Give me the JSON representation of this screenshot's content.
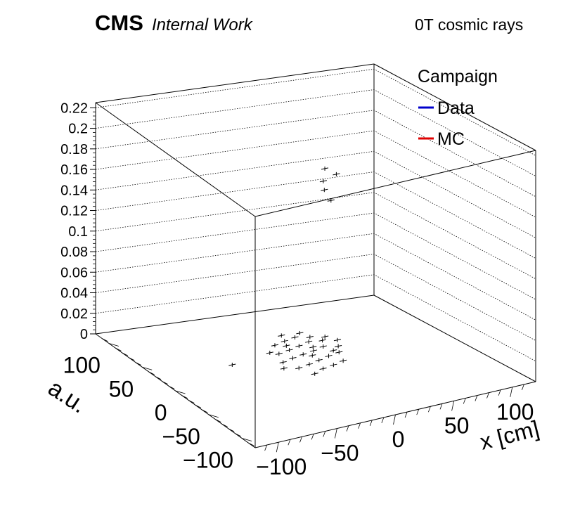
{
  "header": {
    "experiment": "CMS",
    "status": "Internal Work",
    "run_condition": "0T cosmic rays"
  },
  "legend": {
    "title": "Campaign",
    "entries": [
      {
        "label": "Data",
        "color": "#0000cc"
      },
      {
        "label": "MC",
        "color": "#e00000"
      }
    ]
  },
  "axes": {
    "z_label": "a.u.",
    "x_label": "x [cm]",
    "z_ticks": [
      "0",
      "0.02",
      "0.04",
      "0.06",
      "0.08",
      "0.1",
      "0.12",
      "0.14",
      "0.16",
      "0.18",
      "0.2",
      "0.22"
    ],
    "x_ticks": [
      "−100",
      "−50",
      "0",
      "50",
      "100"
    ],
    "y_ticks": [
      "100",
      "50",
      "0",
      "−50",
      "−100"
    ]
  },
  "chart_data": {
    "type": "scatter",
    "title": "",
    "xlabel": "x [cm]",
    "ylabel": "",
    "zlabel": "a.u.",
    "xlim": [
      -120,
      120
    ],
    "ylim": [
      -120,
      120
    ],
    "zlim": [
      0,
      0.225
    ],
    "grid": true,
    "legend_position": "top-right",
    "series": [
      {
        "name": "Data",
        "color": "#000000",
        "points": [
          {
            "x": 5,
            "y": -5,
            "z": 0.185
          },
          {
            "x": 12,
            "y": -10,
            "z": 0.18
          },
          {
            "x": 2,
            "y": -8,
            "z": 0.175
          },
          {
            "x": 4,
            "y": -6,
            "z": 0.165
          },
          {
            "x": 8,
            "y": -9,
            "z": 0.155
          },
          {
            "x": -15,
            "y": -25,
            "z": 0
          },
          {
            "x": -5,
            "y": -20,
            "z": 0
          },
          {
            "x": 5,
            "y": -18,
            "z": 0
          },
          {
            "x": 15,
            "y": -15,
            "z": 0
          },
          {
            "x": -20,
            "y": -10,
            "z": 0
          },
          {
            "x": -10,
            "y": -8,
            "z": 0
          },
          {
            "x": 0,
            "y": -5,
            "z": 0
          },
          {
            "x": 10,
            "y": -2,
            "z": 0
          },
          {
            "x": 20,
            "y": 0,
            "z": 0
          },
          {
            "x": -25,
            "y": 5,
            "z": 0
          },
          {
            "x": -15,
            "y": 8,
            "z": 0
          },
          {
            "x": -5,
            "y": 10,
            "z": 0
          },
          {
            "x": 5,
            "y": 12,
            "z": 0
          },
          {
            "x": 15,
            "y": 15,
            "z": 0
          },
          {
            "x": 25,
            "y": 10,
            "z": 0
          },
          {
            "x": -20,
            "y": 20,
            "z": 0
          },
          {
            "x": -10,
            "y": 22,
            "z": 0
          },
          {
            "x": 0,
            "y": 25,
            "z": 0
          },
          {
            "x": 10,
            "y": 28,
            "z": 0
          },
          {
            "x": 20,
            "y": 25,
            "z": 0
          },
          {
            "x": -15,
            "y": 35,
            "z": 0
          },
          {
            "x": -5,
            "y": 38,
            "z": 0
          },
          {
            "x": 5,
            "y": 40,
            "z": 0
          },
          {
            "x": 15,
            "y": 35,
            "z": 0
          },
          {
            "x": 30,
            "y": 20,
            "z": 0
          },
          {
            "x": -30,
            "y": -5,
            "z": 0
          },
          {
            "x": 0,
            "y": 5,
            "z": 0
          },
          {
            "x": 8,
            "y": 18,
            "z": 0
          },
          {
            "x": -8,
            "y": 30,
            "z": 0
          },
          {
            "x": 25,
            "y": 30,
            "z": 0
          },
          {
            "x": 12,
            "y": 45,
            "z": 0
          },
          {
            "x": -2,
            "y": 48,
            "z": 0
          },
          {
            "x": -25,
            "y": 25,
            "z": 0
          },
          {
            "x": -60,
            "y": 20,
            "z": 0
          },
          {
            "x": 18,
            "y": 5,
            "z": 0
          }
        ]
      }
    ]
  }
}
